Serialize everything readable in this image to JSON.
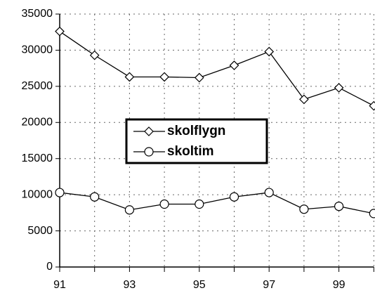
{
  "chart_data": {
    "type": "line",
    "categories": [
      "91",
      null,
      "93",
      null,
      "95",
      null,
      "97",
      null,
      "99",
      null
    ],
    "series": [
      {
        "name": "skolflygn",
        "color": "#000000",
        "marker": "diamond",
        "values": [
          32600,
          29300,
          26300,
          26300,
          26200,
          27900,
          29800,
          23200,
          24800,
          22300
        ]
      },
      {
        "name": "skoltim",
        "color": "#000000",
        "marker": "circle",
        "values": [
          10300,
          9700,
          7900,
          8700,
          8700,
          9700,
          10300,
          8000,
          8400,
          7400
        ]
      }
    ],
    "ylim": [
      0,
      35000
    ],
    "yticks": [
      0,
      5000,
      10000,
      15000,
      20000,
      25000,
      30000,
      35000
    ],
    "grid": true,
    "legend": "center"
  }
}
